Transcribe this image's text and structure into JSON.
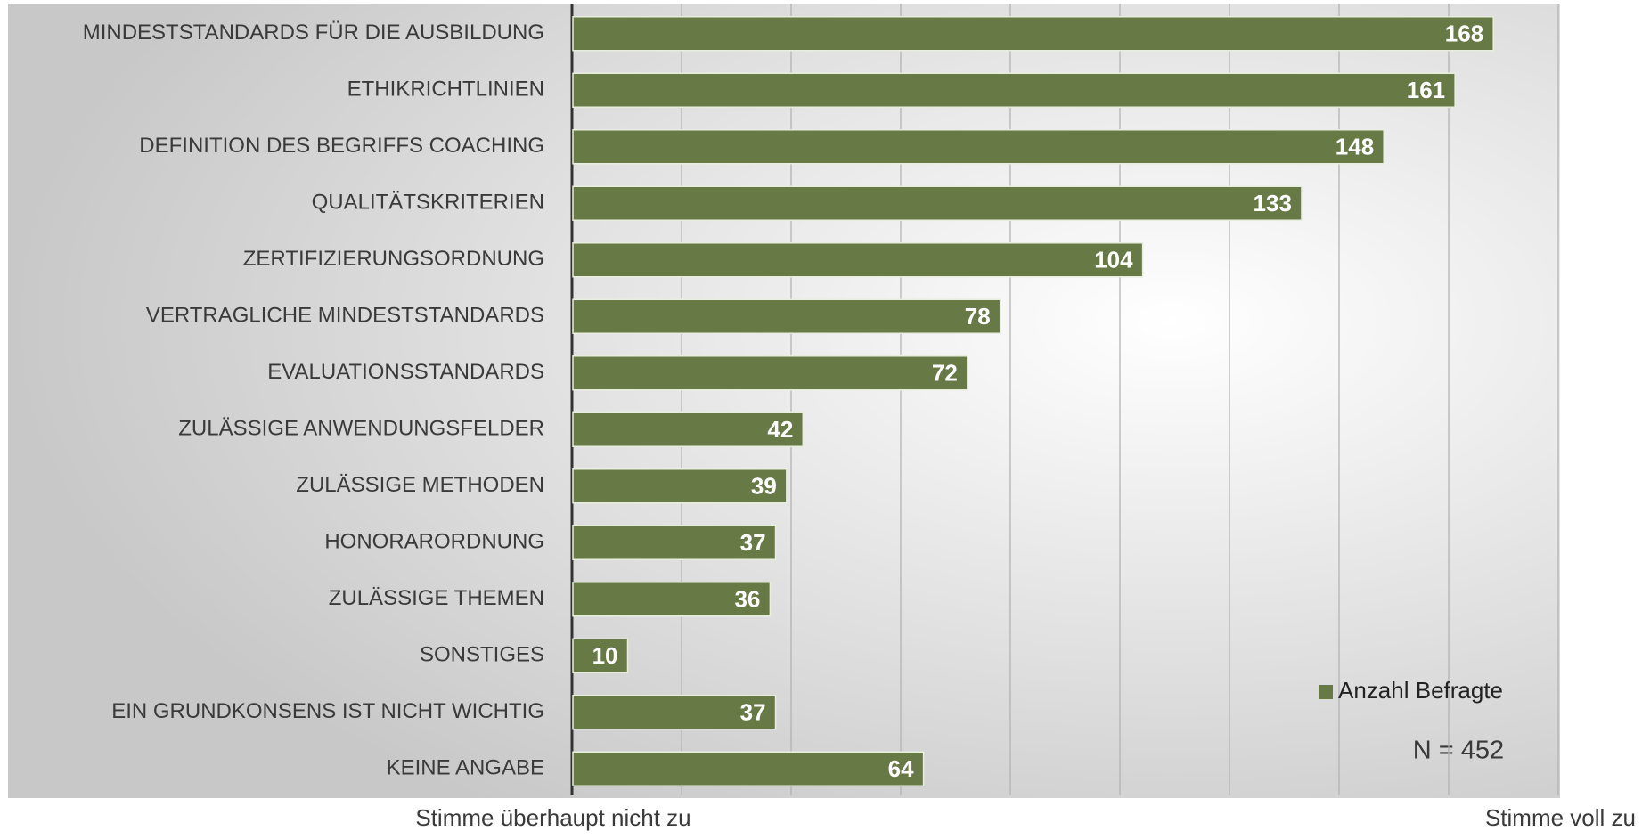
{
  "chart_data": {
    "type": "barh",
    "categories": [
      "MINDESTSTANDARDS FÜR DIE AUSBILDUNG",
      "ETHIKRICHTLINIEN",
      "DEFINITION DES BEGRIFFS COACHING",
      "QUALITÄTSKRITERIEN",
      "ZERTIFIZIERUNGSORDNUNG",
      "VERTRAGLICHE MINDESTSTANDARDS",
      "EVALUATIONSSTANDARDS",
      "ZULÄSSIGE ANWENDUNGSFELDER",
      "ZULÄSSIGE METHODEN",
      "HONORARORDNUNG",
      "ZULÄSSIGE THEMEN",
      "SONSTIGES",
      "EIN GRUNDKONSENS IST NICHT WICHTIG",
      "KEINE ANGABE"
    ],
    "series": [
      {
        "name": "Anzahl Befragte",
        "color": "#677a46",
        "values": [
          168,
          161,
          148,
          133,
          104,
          78,
          72,
          42,
          39,
          37,
          36,
          10,
          37,
          64
        ]
      }
    ],
    "xlim": [
      0,
      180
    ],
    "xticks": [
      0,
      20,
      40,
      60,
      80,
      100,
      120,
      140,
      160,
      180
    ],
    "grid": true,
    "legend": "lower right",
    "axis_left_label": "Stimme überhaupt nicht zu",
    "axis_right_label": "Stimme voll zu",
    "annotation": "N = 452"
  }
}
